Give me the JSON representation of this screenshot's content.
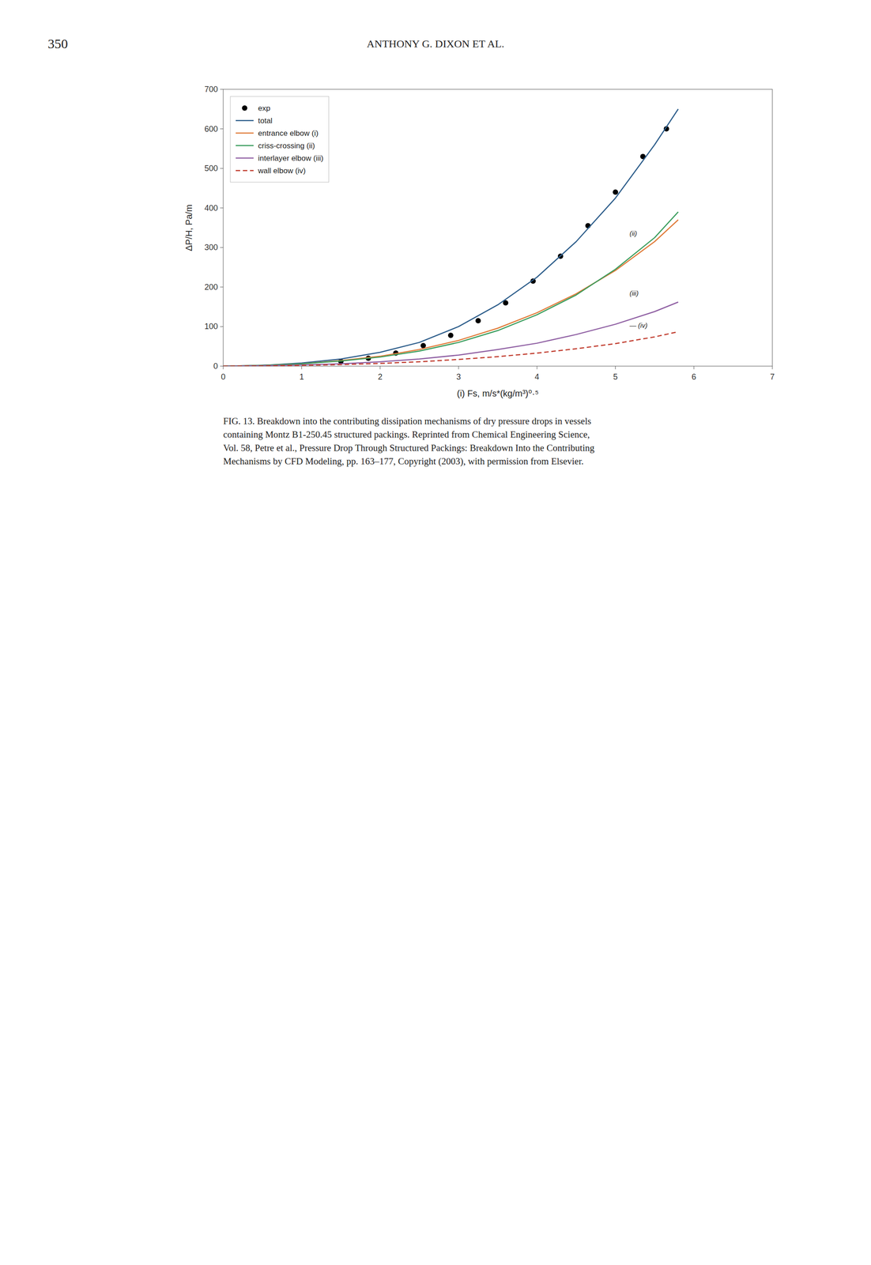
{
  "header": "ANTHONY G. DIXON  ET AL.",
  "page_number": "350",
  "caption": [
    "FIG. 13.  Breakdown into the contributing dissipation mechanisms of dry pressure drops in vessels",
    "containing Montz B1-250.45 structured packings. Reprinted from Chemical Engineering Science,",
    "Vol. 58, Petre et al., Pressure Drop Through Structured Packings: Breakdown Into the Contributing",
    "Mechanisms by CFD Modeling, pp. 163–177, Copyright (2003), with permission from Elsevier."
  ],
  "chart_data": {
    "type": "line",
    "xlabel": "(i) Fs, m/s*(kg/m³)⁰·⁵",
    "ylabel": "ΔP/H, Pa/m",
    "xlim": [
      0,
      7
    ],
    "ylim": [
      0,
      700
    ],
    "xticks": [
      0,
      1,
      2,
      3,
      4,
      5,
      6,
      7
    ],
    "yticks": [
      0,
      100,
      200,
      300,
      400,
      500,
      600,
      700
    ],
    "grid": false,
    "legend": "upper left",
    "series": [
      {
        "name": "exp",
        "type": "scatter",
        "marker": "circle",
        "color": "#000000",
        "x": [
          1.5,
          1.85,
          2.2,
          2.55,
          2.9,
          3.25,
          3.6,
          3.95,
          4.3,
          4.65,
          5.0,
          5.35,
          5.65
        ],
        "values": [
          12,
          20,
          33,
          52,
          78,
          115,
          160,
          215,
          278,
          355,
          440,
          530,
          600
        ]
      },
      {
        "name": "total",
        "type": "line",
        "line_style": "solid",
        "color": "#2b5c8a",
        "x": [
          0,
          0.3,
          0.6,
          1.0,
          1.5,
          2.0,
          2.5,
          3.0,
          3.5,
          4.0,
          4.5,
          5.0,
          5.5,
          5.8
        ],
        "values": [
          0,
          1,
          3,
          8,
          18,
          35,
          60,
          100,
          155,
          225,
          315,
          425,
          560,
          650
        ]
      },
      {
        "name": "entrance elbow (i)",
        "type": "line",
        "line_style": "solid",
        "color": "#e07b39",
        "x": [
          0,
          0.5,
          1.0,
          1.5,
          2.0,
          2.5,
          3.0,
          3.5,
          4.0,
          4.5,
          5.0,
          5.5,
          5.8
        ],
        "values": [
          0,
          2,
          6,
          14,
          25,
          42,
          65,
          96,
          135,
          183,
          242,
          315,
          370
        ]
      },
      {
        "name": "criss-crossing (ii)",
        "type": "line",
        "line_style": "solid",
        "color": "#3a9d5d",
        "x": [
          0,
          0.5,
          1.0,
          1.5,
          2.0,
          2.5,
          3.0,
          3.5,
          4.0,
          4.5,
          5.0,
          5.5,
          5.8
        ],
        "values": [
          0,
          2,
          6,
          13,
          23,
          38,
          60,
          90,
          130,
          180,
          245,
          325,
          390
        ]
      },
      {
        "name": "interlayer elbow (iii)",
        "type": "line",
        "line_style": "solid",
        "color": "#8e5ea2",
        "x": [
          0,
          0.5,
          1.0,
          1.5,
          2.0,
          2.5,
          3.0,
          3.5,
          4.0,
          4.5,
          5.0,
          5.5,
          5.8
        ],
        "values": [
          0,
          1,
          3,
          6,
          11,
          18,
          28,
          42,
          58,
          80,
          106,
          138,
          162
        ]
      },
      {
        "name": "wall elbow (iv)",
        "type": "line",
        "line_style": "dashed",
        "color": "#c0392b",
        "x": [
          0,
          0.5,
          1.0,
          1.5,
          2.0,
          2.5,
          3.0,
          3.5,
          4.0,
          4.5,
          5.0,
          5.5,
          5.8
        ],
        "values": [
          0,
          0.5,
          2,
          4,
          7,
          11,
          17,
          24,
          33,
          44,
          57,
          74,
          87
        ]
      }
    ],
    "annotations": [
      {
        "text": "(ii)",
        "x": 5.18,
        "y": 330
      },
      {
        "text": "(iii)",
        "x": 5.18,
        "y": 178
      },
      {
        "text": "— (iv)",
        "x": 5.18,
        "y": 97
      }
    ]
  }
}
